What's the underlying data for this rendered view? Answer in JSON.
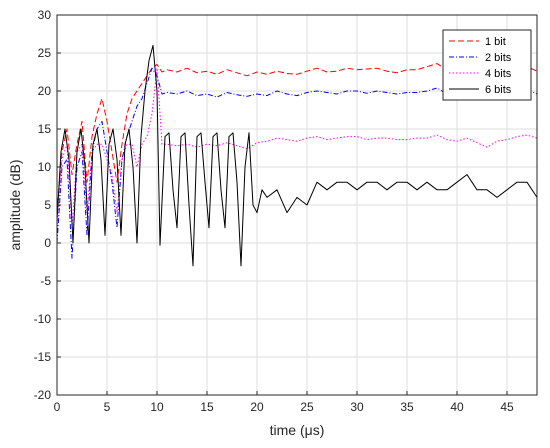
{
  "chart_data": {
    "type": "line",
    "title": "",
    "xlabel": "time (μs)",
    "ylabel": "amplitude (dB)",
    "xlim": [
      0,
      48
    ],
    "ylim": [
      -20,
      30
    ],
    "xticks": [
      0,
      5,
      10,
      15,
      20,
      25,
      30,
      35,
      40,
      45
    ],
    "yticks": [
      -20,
      -15,
      -10,
      -5,
      0,
      5,
      10,
      15,
      20,
      25,
      30
    ],
    "grid": true,
    "legend_position": "top-right",
    "series": [
      {
        "name": "1 bit",
        "color": "#ff0000",
        "dash": "6,3",
        "x": [
          0,
          0.5,
          1,
          1.5,
          2,
          2.5,
          3,
          3.5,
          4,
          4.5,
          5,
          5.5,
          6,
          6.5,
          7,
          7.5,
          8,
          8.5,
          9,
          9.5,
          10,
          10.5,
          11,
          12,
          13,
          14,
          15,
          16,
          17,
          18,
          19,
          20,
          21,
          22,
          23,
          24,
          25,
          26,
          27,
          28,
          29,
          30,
          31,
          32,
          33,
          34,
          35,
          36,
          37,
          38,
          39,
          40,
          41,
          42,
          43,
          44,
          45,
          46,
          47,
          48
        ],
        "y": [
          4,
          12,
          15,
          9,
          13,
          16,
          8,
          14,
          17,
          19,
          16,
          12,
          8,
          13,
          17,
          19,
          20,
          21,
          22,
          23,
          23.5,
          22.5,
          22.8,
          22.5,
          23,
          22.4,
          22.6,
          22.2,
          22.8,
          22.4,
          22,
          22.5,
          22.2,
          22.6,
          22.3,
          22.2,
          22.6,
          23,
          22.5,
          22.6,
          23,
          22.8,
          22.9,
          23,
          22.6,
          22.4,
          22.8,
          22.8,
          23.2,
          23.6,
          22.8,
          22.6,
          22.9,
          22.8,
          22.4,
          22.6,
          22.5,
          23,
          23.2,
          22.6
        ]
      },
      {
        "name": "2 bits",
        "color": "#0000ff",
        "dash": "5,2,1,2",
        "x": [
          0,
          0.5,
          1,
          1.5,
          2,
          2.5,
          3,
          3.5,
          4,
          4.5,
          5,
          5.5,
          6,
          6.5,
          7,
          7.5,
          8,
          8.5,
          9,
          9.5,
          10,
          10.5,
          11,
          12,
          13,
          14,
          15,
          16,
          17,
          18,
          19,
          20,
          21,
          22,
          23,
          24,
          25,
          26,
          27,
          28,
          29,
          30,
          31,
          32,
          33,
          34,
          35,
          36,
          37,
          38,
          39,
          40,
          41,
          42,
          43,
          44,
          45,
          46,
          47,
          48
        ],
        "y": [
          0,
          10,
          11,
          -2,
          10,
          12,
          1,
          12,
          15,
          16,
          12,
          8,
          2,
          11,
          14,
          16,
          18,
          19,
          21,
          23,
          22,
          19.6,
          19.8,
          19.6,
          20,
          19.4,
          19.6,
          19.2,
          19.8,
          19.5,
          19.3,
          19.6,
          19.4,
          20,
          19.6,
          19.4,
          19.8,
          20,
          19.8,
          19.6,
          20,
          20,
          19.7,
          20,
          19.8,
          19.6,
          19.8,
          19.8,
          20,
          20.4,
          19.6,
          19.3,
          19.8,
          19.4,
          19,
          19.4,
          19.4,
          19.8,
          20.2,
          19.6
        ]
      },
      {
        "name": "4 bits",
        "color": "#ff00ff",
        "dash": "1.5,2",
        "x": [
          0,
          0.5,
          1,
          1.5,
          2,
          2.5,
          3,
          3.5,
          4,
          4.5,
          5,
          5.5,
          6,
          6.5,
          7,
          7.5,
          8,
          8.5,
          9,
          9.5,
          10,
          10.5,
          11,
          12,
          13,
          14,
          15,
          16,
          17,
          18,
          19,
          20,
          21,
          22,
          23,
          24,
          25,
          26,
          27,
          28,
          29,
          30,
          31,
          32,
          33,
          34,
          35,
          36,
          37,
          38,
          39,
          40,
          41,
          42,
          43,
          44,
          45,
          46,
          47,
          48
        ],
        "y": [
          2,
          11,
          13,
          2,
          12,
          13,
          4,
          12,
          13,
          13,
          11,
          9,
          4,
          11,
          13,
          13,
          10,
          13,
          14,
          17,
          23,
          13,
          13,
          12.8,
          13,
          12.6,
          13,
          12.8,
          13.2,
          12.8,
          12.4,
          13.2,
          13.4,
          13.8,
          13.6,
          13.4,
          13.8,
          14,
          13.6,
          13.8,
          14,
          14,
          13.6,
          13.8,
          13.8,
          13.6,
          13.6,
          13.8,
          13.8,
          14.2,
          13.6,
          13.4,
          13.8,
          13.2,
          12.6,
          13.4,
          13.6,
          14,
          14.2,
          13.8
        ]
      },
      {
        "name": "6 bits",
        "color": "#000000",
        "dash": "",
        "x": [
          0,
          0.4,
          0.8,
          1.2,
          1.6,
          2,
          2.4,
          2.8,
          3.2,
          3.6,
          4,
          4.4,
          4.8,
          5.2,
          5.6,
          6,
          6.4,
          6.8,
          7.2,
          7.6,
          8,
          8.4,
          8.8,
          9.2,
          9.6,
          10,
          10.3,
          10.8,
          11.2,
          11.6,
          12,
          12.4,
          12.8,
          13.2,
          13.6,
          14,
          14.4,
          14.8,
          15.2,
          15.6,
          16,
          16.4,
          16.8,
          17.2,
          17.6,
          18,
          18.4,
          18.8,
          19.2,
          19.6,
          20,
          20.5,
          21,
          22,
          23,
          24,
          25,
          26,
          27,
          28,
          29,
          30,
          31,
          32,
          33,
          34,
          35,
          36,
          37,
          38,
          39,
          40,
          41,
          42,
          43,
          44,
          45,
          46,
          47,
          48
        ],
        "y": [
          3,
          12,
          15,
          11,
          0,
          12,
          15,
          10,
          0,
          13,
          15,
          11,
          1,
          13,
          15,
          11,
          1,
          13,
          15,
          10,
          0,
          14,
          20,
          24,
          26,
          20,
          -0.3,
          14,
          14.5,
          7,
          2,
          14,
          14.5,
          5,
          -3,
          14,
          14.5,
          8,
          2,
          14,
          14.5,
          7,
          2,
          14,
          14.5,
          8,
          -3,
          10,
          14.5,
          5,
          4,
          7,
          6,
          7,
          4,
          6,
          5,
          8,
          7,
          8,
          8,
          7,
          8,
          8,
          7,
          8,
          8,
          7,
          8,
          7,
          7,
          8,
          9,
          7,
          7,
          6,
          7,
          8,
          8,
          6
        ]
      }
    ]
  }
}
